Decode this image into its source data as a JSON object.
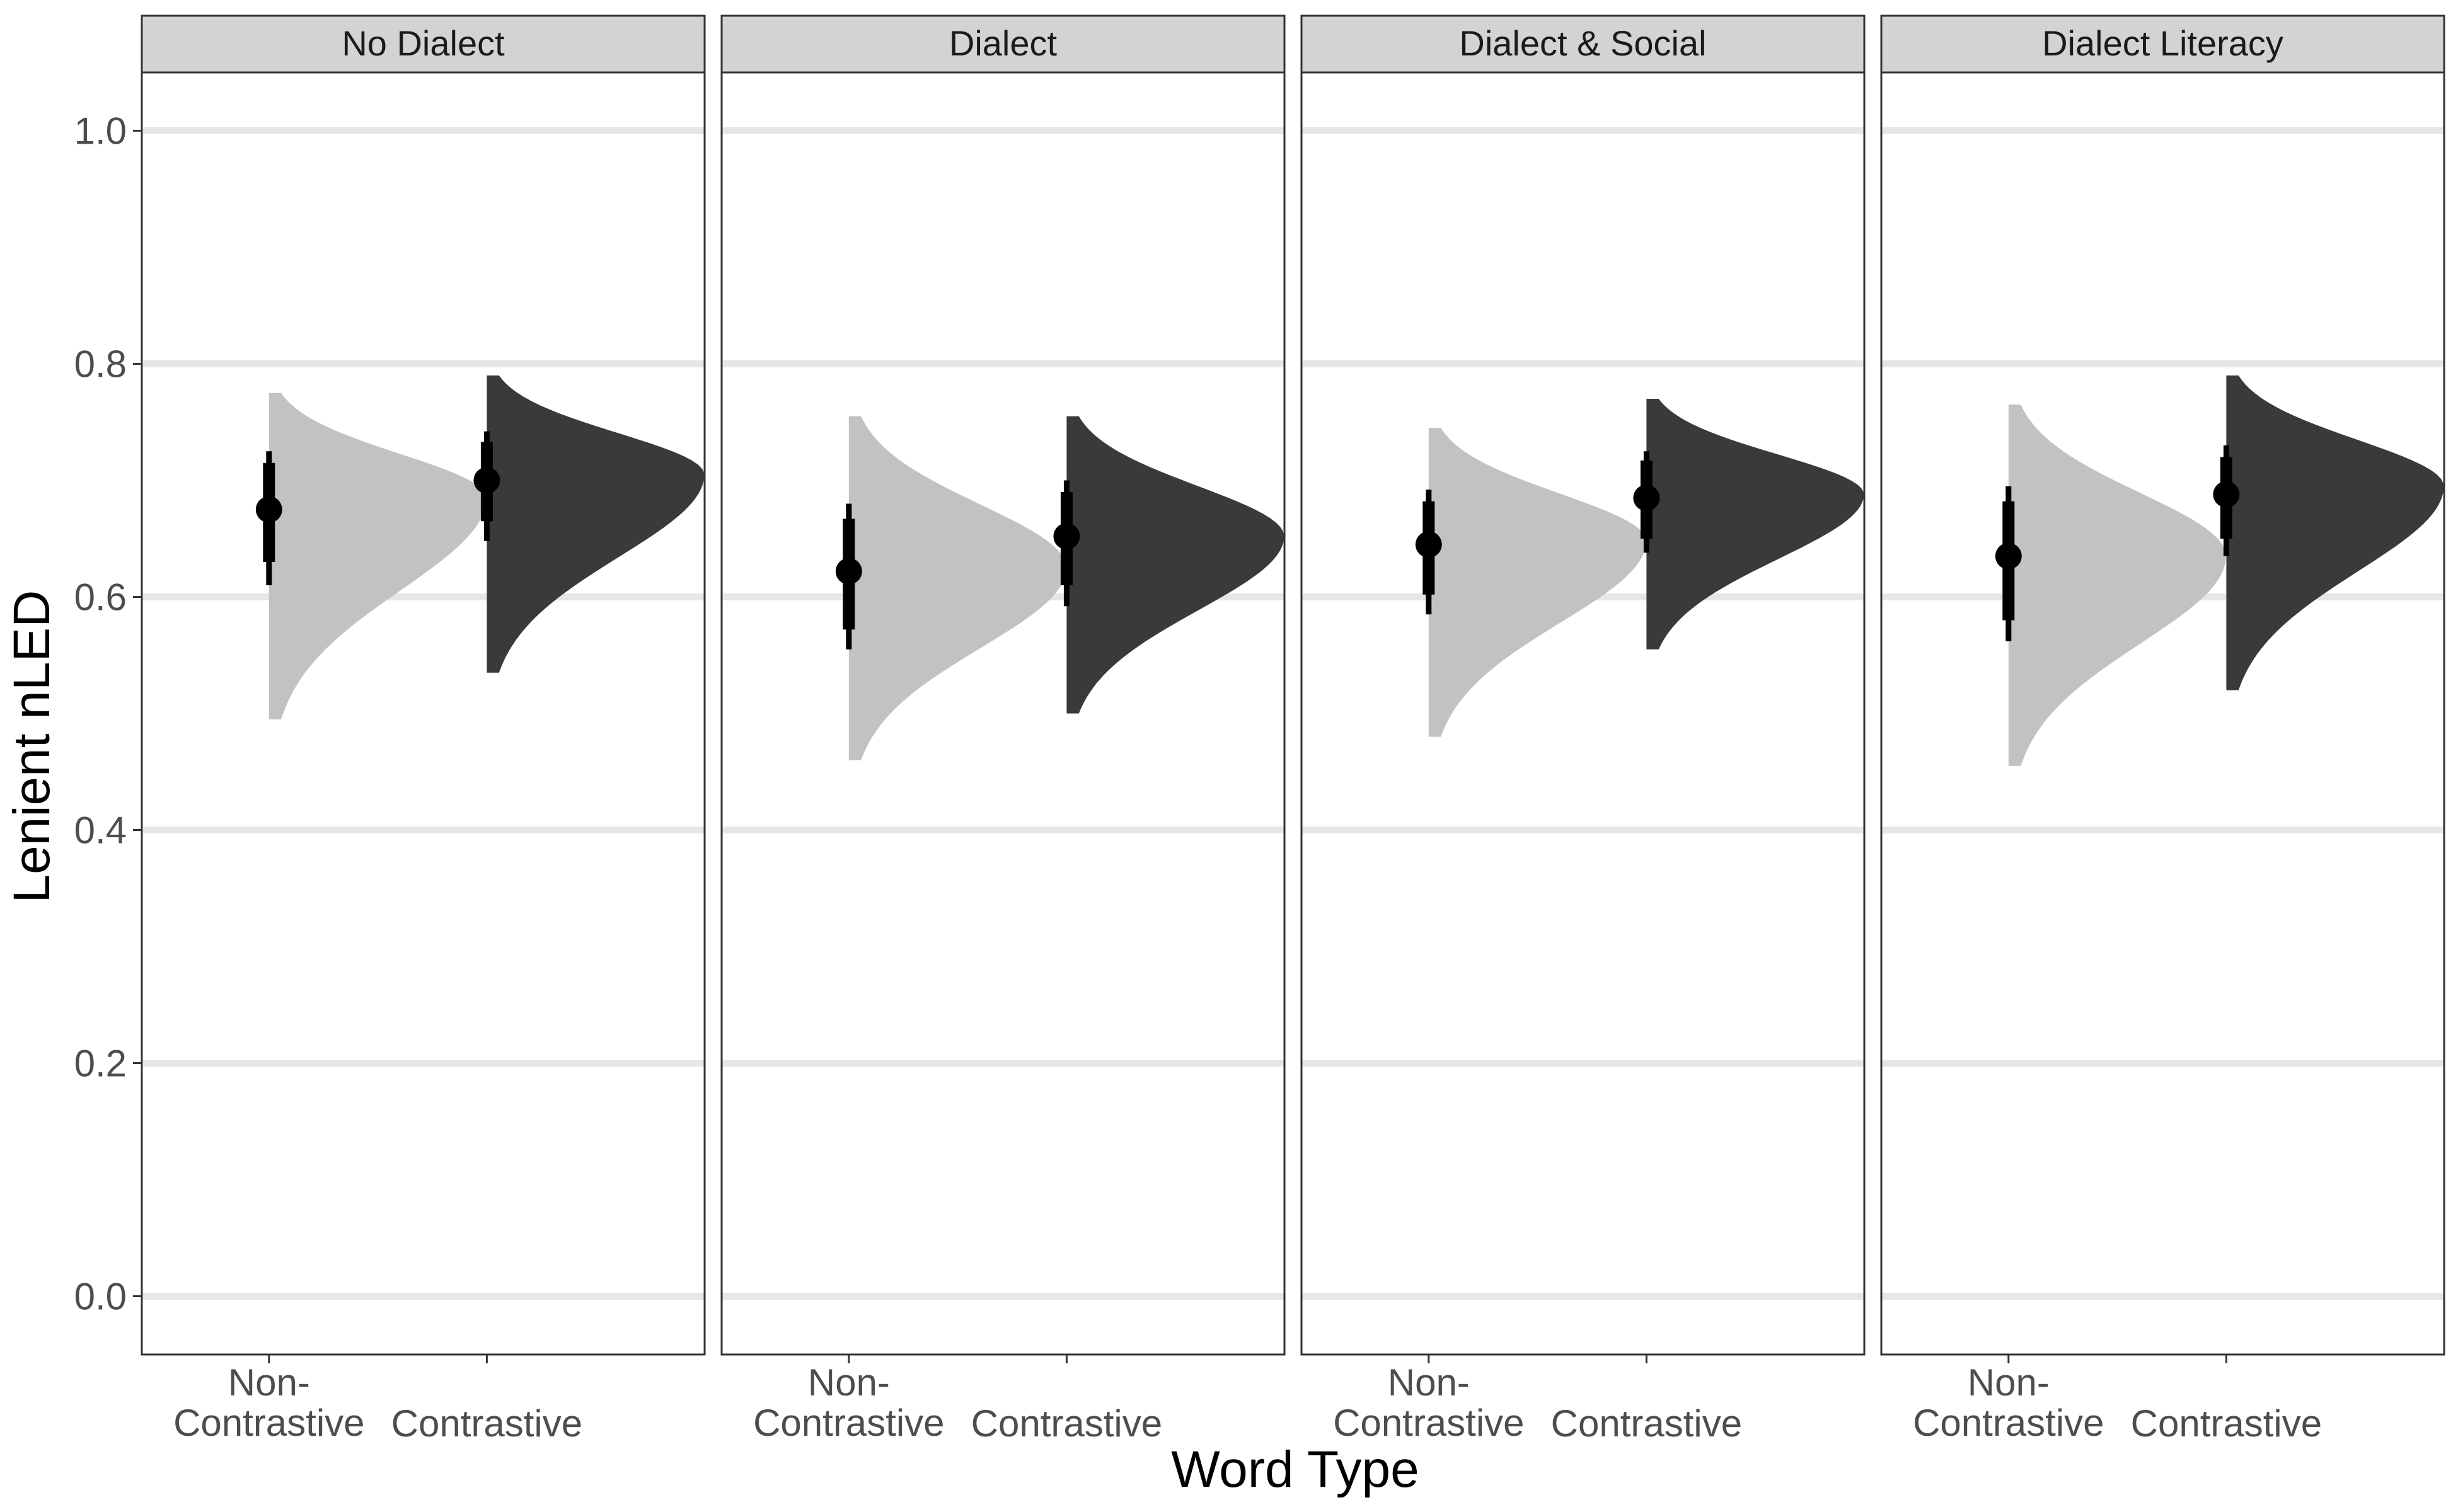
{
  "chart_data": {
    "type": "half-violin (raincloud) faceted",
    "title": "",
    "xlabel": "Word Type",
    "ylabel": "Lenient nLED",
    "ylim": [
      -0.05,
      1.05
    ],
    "yticks": [
      "0.0",
      "0.2",
      "0.4",
      "0.6",
      "0.8",
      "1.0"
    ],
    "ytick_values": [
      0.0,
      0.2,
      0.4,
      0.6,
      0.8,
      1.0
    ],
    "grid": "horizontal major lines",
    "categories": [
      {
        "key": "noncontrastive",
        "label_lines": [
          "Non-",
          "Contrastive"
        ],
        "fill": "#c2c2c2"
      },
      {
        "key": "contrastive",
        "label_lines": [
          "Contrastive"
        ],
        "fill": "#3a3a3a"
      }
    ],
    "facets": [
      {
        "label": "No Dialect",
        "groups": [
          {
            "category": "noncontrastive",
            "median": 0.675,
            "ci66": [
              0.63,
              0.715
            ],
            "ci95": [
              0.61,
              0.725
            ],
            "mode": 0.685,
            "min": 0.495,
            "max": 0.775
          },
          {
            "category": "contrastive",
            "median": 0.7,
            "ci66": [
              0.665,
              0.733
            ],
            "ci95": [
              0.648,
              0.742
            ],
            "mode": 0.705,
            "min": 0.535,
            "max": 0.79
          }
        ]
      },
      {
        "label": "Dialect",
        "groups": [
          {
            "category": "noncontrastive",
            "median": 0.622,
            "ci66": [
              0.572,
              0.667
            ],
            "ci95": [
              0.555,
              0.68
            ],
            "mode": 0.625,
            "min": 0.46,
            "max": 0.755
          },
          {
            "category": "contrastive",
            "median": 0.652,
            "ci66": [
              0.61,
              0.69
            ],
            "ci95": [
              0.592,
              0.7
            ],
            "mode": 0.652,
            "min": 0.5,
            "max": 0.755
          }
        ]
      },
      {
        "label": "Dialect & Social",
        "groups": [
          {
            "category": "noncontrastive",
            "median": 0.645,
            "ci66": [
              0.602,
              0.682
            ],
            "ci95": [
              0.585,
              0.692
            ],
            "mode": 0.648,
            "min": 0.48,
            "max": 0.745
          },
          {
            "category": "contrastive",
            "median": 0.685,
            "ci66": [
              0.65,
              0.717
            ],
            "ci95": [
              0.638,
              0.725
            ],
            "mode": 0.688,
            "min": 0.555,
            "max": 0.77
          }
        ]
      },
      {
        "label": "Dialect Literacy",
        "groups": [
          {
            "category": "noncontrastive",
            "median": 0.635,
            "ci66": [
              0.58,
              0.682
            ],
            "ci95": [
              0.562,
              0.695
            ],
            "mode": 0.635,
            "min": 0.455,
            "max": 0.765
          },
          {
            "category": "contrastive",
            "median": 0.688,
            "ci66": [
              0.65,
              0.72
            ],
            "ci95": [
              0.635,
              0.73
            ],
            "mode": 0.695,
            "min": 0.52,
            "max": 0.79
          }
        ]
      }
    ]
  }
}
